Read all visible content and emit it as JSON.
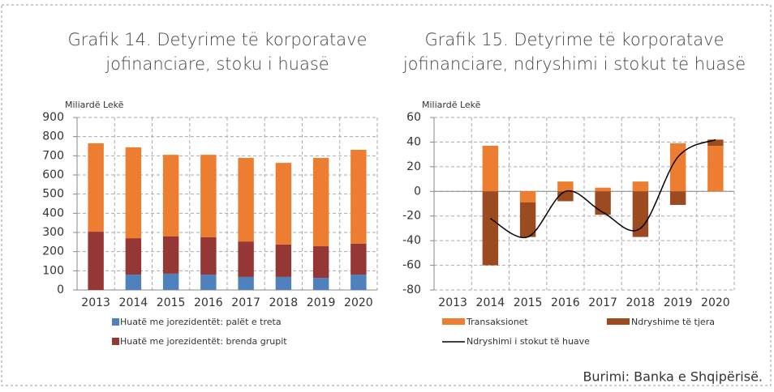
{
  "chart_data": [
    {
      "type": "bar",
      "stacked": true,
      "title": [
        "Grafik 14. Detyrime të korporatave",
        "jofinanciare, stoku i huasë"
      ],
      "y_label": "Miliardë Lekë",
      "categories": [
        "2013",
        "2014",
        "2015",
        "2016",
        "2017",
        "2018",
        "2019",
        "2020"
      ],
      "series": [
        {
          "name": "Huatë me jorezidentët: palët e treta",
          "color": "#4f81bd",
          "values": [
            0,
            80,
            85,
            80,
            68,
            68,
            63,
            80
          ]
        },
        {
          "name": "Huatë me jorezidentët: brenda grupit",
          "color": "#953735",
          "values": [
            304,
            190,
            194,
            195,
            185,
            169,
            165,
            161
          ]
        },
        {
          "color": "#ed7d31",
          "values": [
            461,
            474,
            426,
            430,
            436,
            426,
            461,
            490
          ]
        }
      ],
      "ylim": [
        0,
        900
      ],
      "yticks": [
        0,
        100,
        200,
        300,
        400,
        500,
        600,
        700,
        800,
        900
      ],
      "grid": true
    },
    {
      "type": "bar",
      "stacked": true,
      "title": [
        "Grafik 15. Detyrime të korporatave",
        "jofinanciare, ndryshimi i stokut të huasë"
      ],
      "y_label": "Miliardë Lekë",
      "categories": [
        "2013",
        "2014",
        "2015",
        "2016",
        "2017",
        "2018",
        "2019",
        "2020"
      ],
      "series": [
        {
          "name": "Transaksionet",
          "color": "#ed7d31",
          "values": [
            null,
            37,
            -9,
            8,
            3,
            8,
            39,
            37
          ]
        },
        {
          "name": "Ndryshime të tjera",
          "color": "#9c4a1f",
          "values": [
            null,
            -60,
            -28,
            -8,
            -19,
            -37,
            -11,
            5
          ]
        },
        {
          "name": "Ndryshimi i stokut të huave",
          "color": "#000000",
          "kind": "line",
          "values": [
            null,
            -22,
            -37,
            0,
            -17,
            -30,
            28,
            42
          ]
        }
      ],
      "ylim": [
        -80,
        60
      ],
      "yticks": [
        -80,
        -60,
        -40,
        -20,
        0,
        20,
        40,
        60
      ],
      "grid": true
    }
  ],
  "source": "Burimi: Banka e Shqipërisë."
}
